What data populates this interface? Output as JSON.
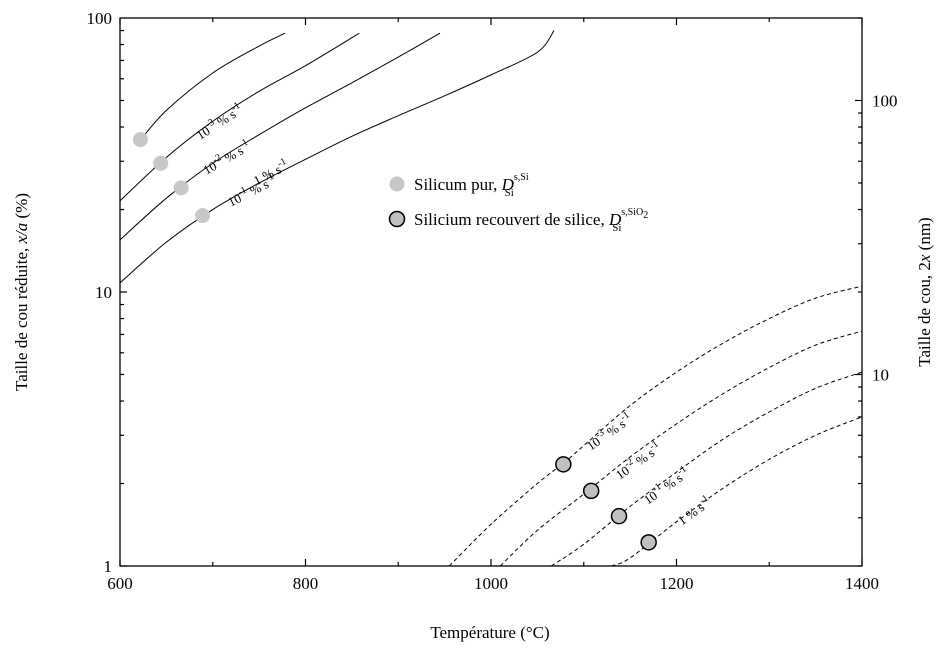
{
  "chart_data": {
    "type": "line",
    "title": "",
    "xlabel": "Température (°C)",
    "ylabel": {
      "prefix": "Taille de cou réduite, ",
      "var": "x/a",
      "suffix": " (%)"
    },
    "y2label": {
      "prefix": "Taille de cou, 2",
      "var": "x",
      "suffix": " (nm)"
    },
    "xlim": [
      600,
      1400
    ],
    "ylim": [
      1,
      100
    ],
    "yscale": "log",
    "y2lim": [
      2,
      200
    ],
    "y2scale": "log",
    "xticks": [
      600,
      800,
      1000,
      1200,
      1400
    ],
    "yticks": [
      1,
      10,
      100
    ],
    "y2ticks": [
      10,
      100
    ],
    "grid": false,
    "legend_position": "upper-center",
    "legend": [
      {
        "label": "Silicum pur, ",
        "D": "D",
        "sup": "s,Si",
        "sub": "Si",
        "marker": "circle-filled-lightgray"
      },
      {
        "label": "Silicium recouvert de silice, ",
        "D": "D",
        "sup": "s,SiO",
        "sup_sub": "2",
        "sub": "Si",
        "marker": "circle-gray-black-edge"
      }
    ],
    "rate_labels": [
      {
        "base": "10",
        "exp": "-3",
        "unit": " % s",
        "unit_exp": "-1"
      },
      {
        "base": "10",
        "exp": "-2",
        "unit": " % s",
        "unit_exp": "-1"
      },
      {
        "base": "10",
        "exp": "-1",
        "unit": " % s",
        "unit_exp": "-1"
      },
      {
        "base": "1",
        "exp": "",
        "unit": " % s",
        "unit_exp": "-1"
      }
    ],
    "series": [
      {
        "group": "pure",
        "style": "solid",
        "rate": "10^-3 %/s",
        "x": [
          621,
          650,
          700,
          750,
          778
        ],
        "y": [
          35.5,
          46,
          63,
          79,
          88
        ]
      },
      {
        "group": "pure",
        "style": "solid",
        "rate": "10^-2 %/s",
        "x": [
          600,
          650,
          700,
          750,
          800,
          858
        ],
        "y": [
          21.5,
          31,
          42,
          54,
          67,
          88
        ]
      },
      {
        "group": "pure",
        "style": "solid",
        "rate": "10^-1 %/s",
        "x": [
          600,
          650,
          700,
          750,
          800,
          850,
          900,
          945
        ],
        "y": [
          15.5,
          22,
          29.5,
          37.5,
          47,
          58,
          72,
          88
        ]
      },
      {
        "group": "pure",
        "style": "solid",
        "rate": "1 %/s",
        "x": [
          600,
          650,
          700,
          750,
          800,
          850,
          900,
          950,
          1000,
          1050,
          1068
        ],
        "y": [
          10.8,
          15.2,
          20,
          25,
          30.5,
          37,
          44,
          52,
          62,
          75,
          90
        ]
      },
      {
        "group": "coated",
        "style": "dashed",
        "rate": "10^-3 %/s",
        "x": [
          955,
          1000,
          1050,
          1080,
          1100,
          1150,
          1200,
          1250,
          1300,
          1350,
          1400
        ],
        "y": [
          1.0,
          1.42,
          2.0,
          2.4,
          2.75,
          3.85,
          5.1,
          6.5,
          8.0,
          9.5,
          10.5
        ]
      },
      {
        "group": "coated",
        "style": "dashed",
        "rate": "10^-2 %/s",
        "x": [
          1010,
          1050,
          1100,
          1150,
          1200,
          1250,
          1300,
          1350,
          1400
        ],
        "y": [
          1.0,
          1.35,
          1.83,
          2.5,
          3.3,
          4.25,
          5.3,
          6.4,
          7.2
        ]
      },
      {
        "group": "coated",
        "style": "dashed",
        "rate": "10^-1 %/s",
        "x": [
          1065,
          1100,
          1150,
          1200,
          1250,
          1300,
          1350,
          1400
        ],
        "y": [
          1.0,
          1.2,
          1.65,
          2.2,
          2.9,
          3.65,
          4.45,
          5.1
        ]
      },
      {
        "group": "coated",
        "style": "dashed",
        "rate": "1 %/s",
        "x": [
          1130,
          1150,
          1200,
          1250,
          1300,
          1350,
          1400
        ],
        "y": [
          1.0,
          1.07,
          1.45,
          1.92,
          2.45,
          3.0,
          3.5
        ]
      }
    ],
    "points": [
      {
        "group": "pure",
        "x": [
          622,
          644,
          666,
          689
        ],
        "y": [
          36,
          29.5,
          24,
          19
        ]
      },
      {
        "group": "coated",
        "x": [
          1078,
          1108,
          1138,
          1170
        ],
        "y": [
          2.35,
          1.88,
          1.52,
          1.22
        ]
      }
    ]
  }
}
